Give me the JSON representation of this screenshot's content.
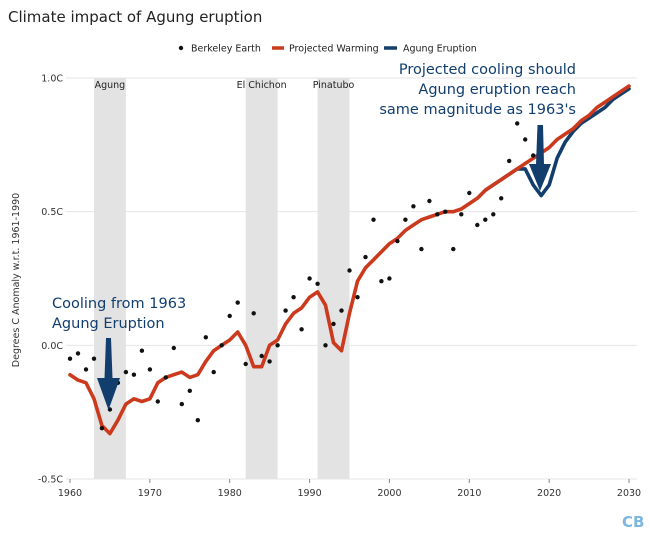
{
  "chart_data": {
    "type": "line",
    "title": "Climate impact of Agung eruption",
    "ylabel": "Degrees C Anomaly w.r.t. 1961-1990",
    "xlabel": "",
    "xlim": [
      1959.5,
      2031
    ],
    "ylim": [
      -0.5,
      1.0
    ],
    "x_ticks": [
      1960,
      1970,
      1980,
      1990,
      2000,
      2010,
      2020,
      2030
    ],
    "x_tick_labels": [
      "1960",
      "1970",
      "1980",
      "1990",
      "2000",
      "2010",
      "2020",
      "2030"
    ],
    "y_ticks": [
      -0.5,
      0.0,
      0.5,
      1.0
    ],
    "y_tick_labels": [
      "-0.5C",
      "0.0C",
      "0.5C",
      "1.0C"
    ],
    "grid": "horizontal",
    "legend_position": "top-center",
    "legend": [
      "Berkeley Earth",
      "Projected Warming",
      "Agung Eruption"
    ],
    "colors": {
      "berkeley": "#111111",
      "projected": "#cc3a1e",
      "agung": "#123e6e",
      "band": "#e3e3e3",
      "grid": "#e6e6e6",
      "annotation": "#123e6e",
      "logo": "#7db7df"
    },
    "eruption_bands": [
      {
        "label": "Agung",
        "start": 1963,
        "end": 1967
      },
      {
        "label": "El Chichon",
        "start": 1982,
        "end": 1986
      },
      {
        "label": "Pinatubo",
        "start": 1991,
        "end": 1995
      }
    ],
    "series": [
      {
        "name": "Berkeley Earth",
        "kind": "scatter",
        "x": [
          1960,
          1961,
          1962,
          1963,
          1964,
          1965,
          1966,
          1967,
          1968,
          1969,
          1970,
          1971,
          1972,
          1973,
          1974,
          1975,
          1976,
          1977,
          1978,
          1979,
          1980,
          1981,
          1982,
          1983,
          1984,
          1985,
          1986,
          1987,
          1988,
          1989,
          1990,
          1991,
          1992,
          1993,
          1994,
          1995,
          1996,
          1997,
          1998,
          1999,
          2000,
          2001,
          2002,
          2003,
          2004,
          2005,
          2006,
          2007,
          2008,
          2009,
          2010,
          2011,
          2012,
          2013,
          2014,
          2015,
          2016,
          2017,
          2018
        ],
        "y": [
          -0.05,
          -0.03,
          -0.09,
          -0.05,
          -0.31,
          -0.24,
          -0.14,
          -0.1,
          -0.11,
          -0.02,
          -0.09,
          -0.21,
          -0.12,
          -0.01,
          -0.22,
          -0.17,
          -0.28,
          0.03,
          -0.1,
          0.0,
          0.11,
          0.16,
          -0.07,
          0.12,
          -0.04,
          -0.06,
          0.0,
          0.13,
          0.18,
          0.06,
          0.25,
          0.23,
          0.0,
          0.08,
          0.13,
          0.28,
          0.18,
          0.33,
          0.47,
          0.24,
          0.25,
          0.39,
          0.47,
          0.52,
          0.36,
          0.54,
          0.49,
          0.5,
          0.36,
          0.49,
          0.57,
          0.45,
          0.47,
          0.49,
          0.55,
          0.69,
          0.83,
          0.77,
          0.71
        ]
      },
      {
        "name": "Projected Warming",
        "kind": "line",
        "x": [
          1960,
          1961,
          1962,
          1963,
          1964,
          1965,
          1966,
          1967,
          1968,
          1969,
          1970,
          1971,
          1972,
          1973,
          1974,
          1975,
          1976,
          1977,
          1978,
          1979,
          1980,
          1981,
          1982,
          1983,
          1984,
          1985,
          1986,
          1987,
          1988,
          1989,
          1990,
          1991,
          1992,
          1993,
          1994,
          1995,
          1996,
          1997,
          1998,
          1999,
          2000,
          2001,
          2002,
          2003,
          2004,
          2005,
          2006,
          2007,
          2008,
          2009,
          2010,
          2011,
          2012,
          2013,
          2014,
          2015,
          2016,
          2017,
          2018,
          2019,
          2020,
          2021,
          2022,
          2023,
          2024,
          2025,
          2026,
          2027,
          2028,
          2029,
          2030
        ],
        "y": [
          -0.11,
          -0.13,
          -0.14,
          -0.2,
          -0.3,
          -0.33,
          -0.28,
          -0.22,
          -0.2,
          -0.21,
          -0.2,
          -0.14,
          -0.12,
          -0.11,
          -0.1,
          -0.12,
          -0.11,
          -0.06,
          -0.02,
          0.0,
          0.02,
          0.05,
          0.0,
          -0.08,
          -0.08,
          0.0,
          0.02,
          0.08,
          0.12,
          0.14,
          0.18,
          0.2,
          0.15,
          0.01,
          -0.02,
          0.12,
          0.24,
          0.29,
          0.32,
          0.35,
          0.38,
          0.4,
          0.43,
          0.45,
          0.47,
          0.48,
          0.49,
          0.5,
          0.5,
          0.51,
          0.53,
          0.55,
          0.58,
          0.6,
          0.62,
          0.64,
          0.66,
          0.68,
          0.7,
          0.72,
          0.74,
          0.77,
          0.79,
          0.81,
          0.84,
          0.86,
          0.89,
          0.91,
          0.93,
          0.95,
          0.97
        ]
      },
      {
        "name": "Agung Eruption",
        "kind": "line",
        "x": [
          2012,
          2013,
          2014,
          2015,
          2016,
          2017,
          2018,
          2019,
          2020,
          2021,
          2022,
          2023,
          2024,
          2025,
          2026,
          2027,
          2028,
          2029,
          2030
        ],
        "y": [
          0.58,
          0.6,
          0.62,
          0.64,
          0.66,
          0.66,
          0.6,
          0.56,
          0.6,
          0.7,
          0.76,
          0.8,
          0.83,
          0.85,
          0.87,
          0.89,
          0.92,
          0.94,
          0.96
        ]
      }
    ],
    "annotations": [
      {
        "id": "cooling_1963",
        "lines": [
          "Cooling from 1963",
          "Agung Eruption"
        ],
        "arrow_target": [
          1965,
          -0.24
        ]
      },
      {
        "id": "projected_cooling",
        "lines": [
          "Projected cooling should",
          "Agung eruption reach",
          "same magnitude as 1963's"
        ],
        "arrow_target": [
          2019,
          0.6
        ]
      }
    ],
    "logo": "CB"
  }
}
